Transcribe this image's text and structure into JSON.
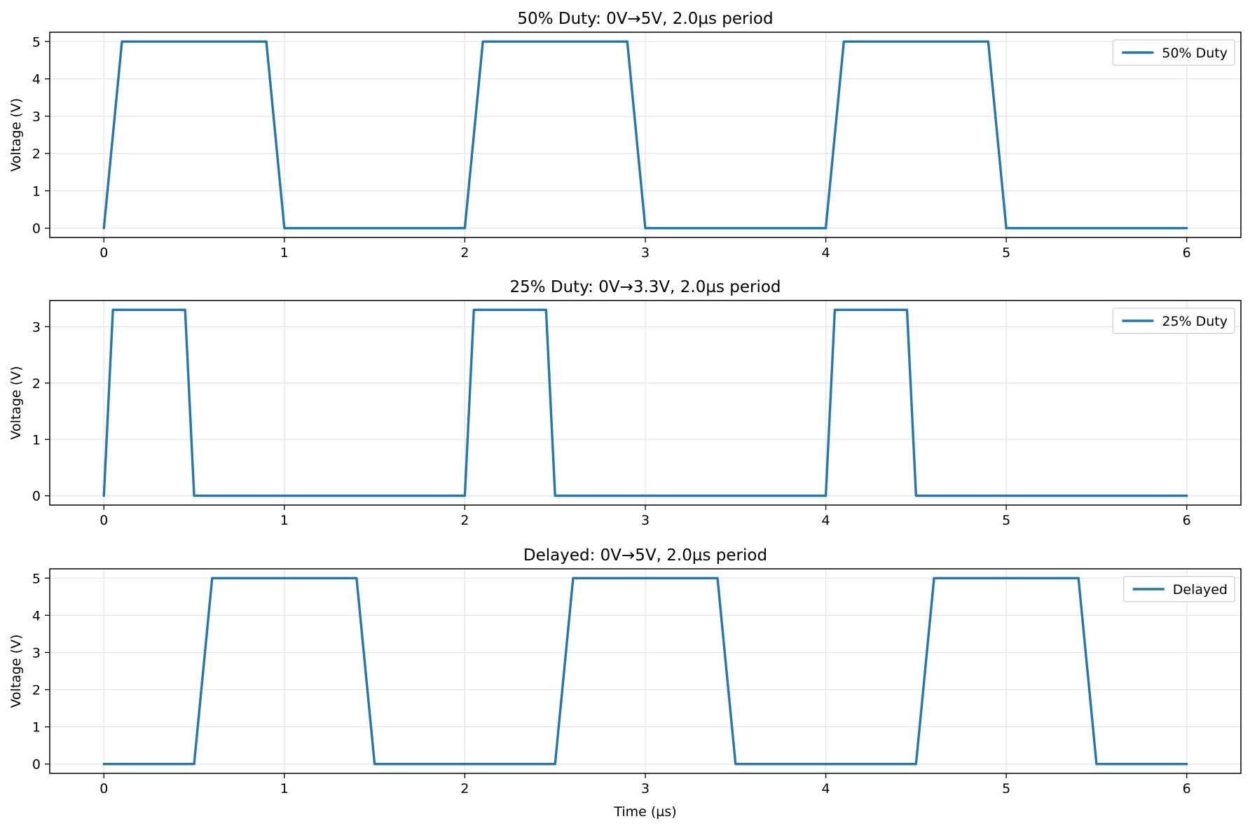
{
  "colors": {
    "series": "#1f77b4"
  },
  "chart_data": [
    {
      "type": "line",
      "title": "50% Duty: 0V→5V, 2.0µs period",
      "xlabel": "",
      "ylabel": "Voltage (V)",
      "xlim": [
        -0.3,
        6.3
      ],
      "ylim": [
        -0.25,
        5.25
      ],
      "xticks": [
        0,
        1,
        2,
        3,
        4,
        5,
        6
      ],
      "yticks": [
        0,
        1,
        2,
        3,
        4,
        5
      ],
      "grid": true,
      "legend_position": "upper right",
      "series": [
        {
          "name": "50% Duty",
          "x": [
            0,
            0.1,
            0.9,
            1.0,
            2.0,
            2.1,
            2.9,
            3.0,
            4.0,
            4.1,
            4.9,
            5.0,
            6.0
          ],
          "y": [
            0,
            5,
            5,
            0,
            0,
            5,
            5,
            0,
            0,
            5,
            5,
            0,
            0
          ]
        }
      ]
    },
    {
      "type": "line",
      "title": "25% Duty: 0V→3.3V, 2.0µs period",
      "xlabel": "",
      "ylabel": "Voltage (V)",
      "xlim": [
        -0.3,
        6.3
      ],
      "ylim": [
        -0.165,
        3.465
      ],
      "xticks": [
        0,
        1,
        2,
        3,
        4,
        5,
        6
      ],
      "yticks": [
        0,
        1,
        2,
        3
      ],
      "grid": true,
      "legend_position": "upper right",
      "series": [
        {
          "name": "25% Duty",
          "x": [
            0,
            0.05,
            0.45,
            0.5,
            2.0,
            2.05,
            2.45,
            2.5,
            4.0,
            4.05,
            4.45,
            4.5,
            6.0
          ],
          "y": [
            0,
            3.3,
            3.3,
            0,
            0,
            3.3,
            3.3,
            0,
            0,
            3.3,
            3.3,
            0,
            0
          ]
        }
      ]
    },
    {
      "type": "line",
      "title": "Delayed: 0V→5V, 2.0µs period",
      "xlabel": "Time (µs)",
      "ylabel": "Voltage (V)",
      "xlim": [
        -0.3,
        6.3
      ],
      "ylim": [
        -0.25,
        5.25
      ],
      "xticks": [
        0,
        1,
        2,
        3,
        4,
        5,
        6
      ],
      "yticks": [
        0,
        1,
        2,
        3,
        4,
        5
      ],
      "grid": true,
      "legend_position": "upper right",
      "series": [
        {
          "name": "Delayed",
          "x": [
            0,
            0.5,
            0.6,
            1.4,
            1.5,
            2.5,
            2.6,
            3.4,
            3.5,
            4.5,
            4.6,
            5.4,
            5.5,
            6.0
          ],
          "y": [
            0,
            0,
            5,
            5,
            0,
            0,
            5,
            5,
            0,
            0,
            5,
            5,
            0,
            0
          ]
        }
      ]
    }
  ]
}
